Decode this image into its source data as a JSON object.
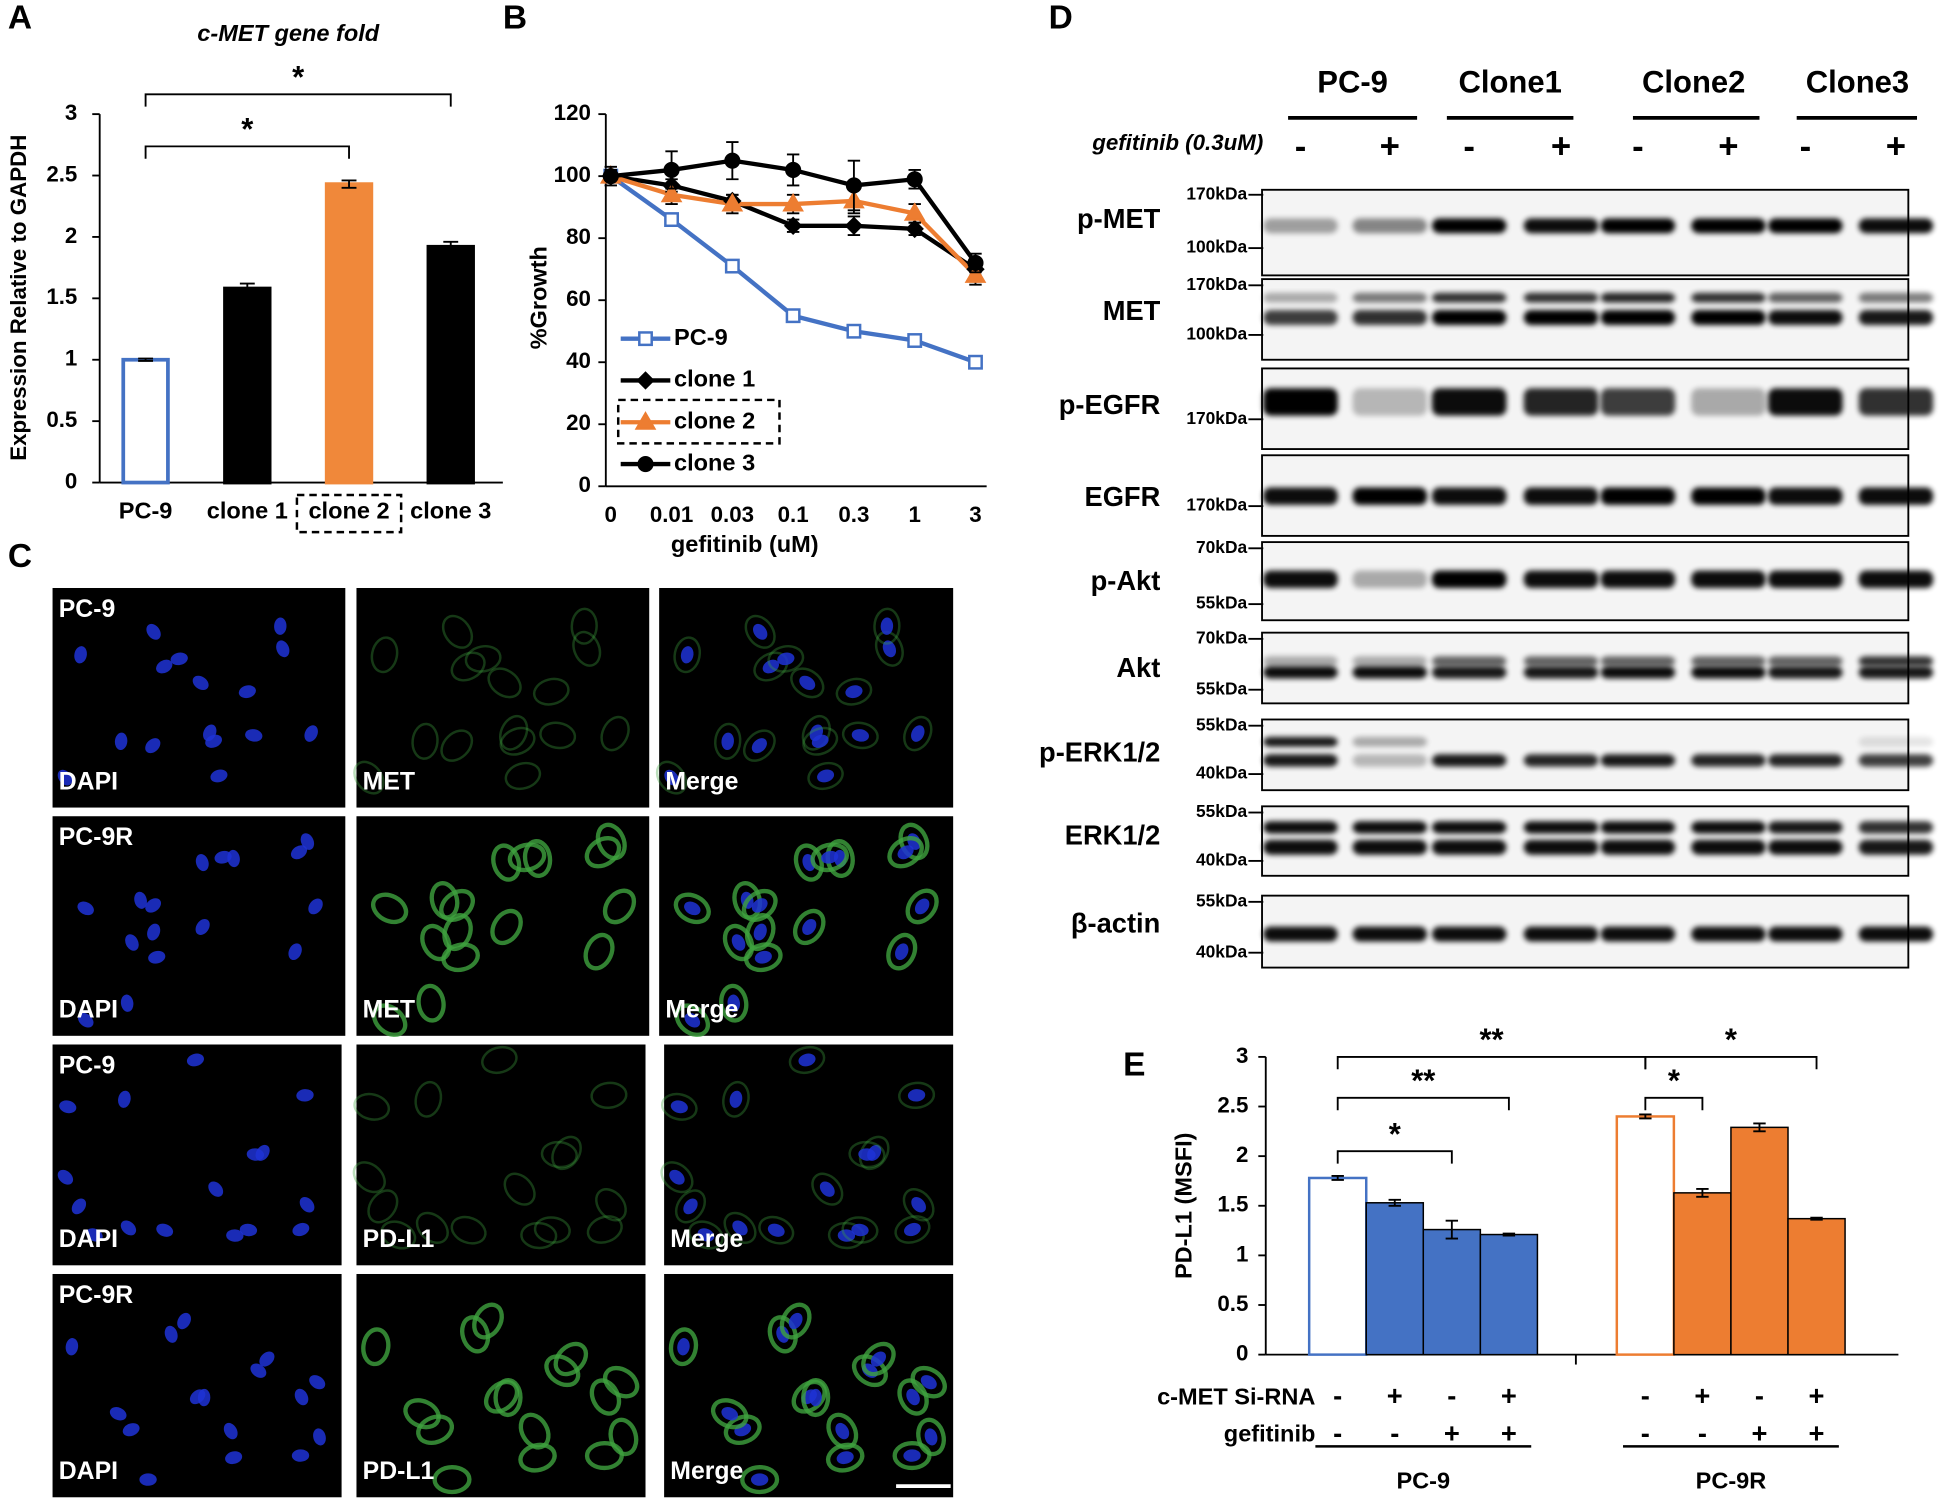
{
  "chart_data": [
    {
      "type": "bar",
      "panel_label": "A",
      "title": "c-MET gene fold",
      "ylabel": "Expression Relative to GAPDH",
      "categories": [
        "PC-9",
        "clone 1",
        "clone 2",
        "clone 3"
      ],
      "values": [
        1.0,
        1.58,
        2.43,
        1.92
      ],
      "errors": [
        0.01,
        0.04,
        0.03,
        0.04
      ],
      "colors": [
        "#ffffff",
        "#000000",
        "#f0883a",
        "#000000"
      ],
      "edge_colors": [
        "#4472c4",
        "#000000",
        "#f0883a",
        "#000000"
      ],
      "ylim": [
        0,
        3
      ],
      "yticks": [
        0,
        0.5,
        1,
        1.5,
        2,
        2.5,
        3
      ],
      "boxed_category": "clone 2",
      "annotations": [
        {
          "text": "*",
          "between": [
            "PC-9",
            "clone 2"
          ]
        },
        {
          "text": "*",
          "between": [
            "PC-9",
            "clone 3"
          ]
        }
      ]
    },
    {
      "type": "line",
      "panel_label": "B",
      "xlabel": "gefitinib (uM)",
      "ylabel": "%Growth",
      "categories": [
        "0",
        "0.01",
        "0.03",
        "0.1",
        "0.3",
        "1",
        "3"
      ],
      "ylim": [
        0,
        120
      ],
      "yticks": [
        0,
        20,
        40,
        60,
        80,
        100,
        120
      ],
      "legend": "lower left",
      "boxed_series": "clone 2",
      "series": [
        {
          "name": "PC-9",
          "color": "#4472c4",
          "marker": "square",
          "values": [
            100,
            86,
            71,
            55,
            50,
            47,
            40
          ],
          "errors": [
            2,
            1,
            1,
            1,
            1,
            1,
            1
          ]
        },
        {
          "name": "clone 1",
          "color": "#000000",
          "marker": "diamond",
          "values": [
            100,
            97,
            92,
            84,
            84,
            83,
            70
          ],
          "errors": [
            2,
            2,
            2,
            2,
            3,
            2,
            2
          ]
        },
        {
          "name": "clone 2",
          "color": "#ed7d31",
          "marker": "triangle",
          "values": [
            100,
            94,
            91,
            91,
            92,
            88,
            68
          ],
          "errors": [
            2,
            3,
            3,
            3,
            4,
            3,
            3
          ]
        },
        {
          "name": "clone 3",
          "color": "#000000",
          "marker": "circle",
          "values": [
            100,
            102,
            105,
            102,
            97,
            99,
            72
          ],
          "errors": [
            3,
            6,
            6,
            5,
            8,
            3,
            3
          ]
        }
      ]
    },
    {
      "type": "grouped_bar",
      "panel_label": "E",
      "ylabel": "PD-L1 (MSFI)",
      "ylim": [
        0,
        3
      ],
      "yticks": [
        0,
        0.5,
        1,
        1.5,
        2,
        2.5,
        3
      ],
      "open_first_bar": true,
      "groups": [
        {
          "name": "PC-9",
          "color": "#4472c4",
          "values": [
            1.78,
            1.53,
            1.26,
            1.21
          ],
          "errors": [
            0.02,
            0.03,
            0.09,
            0.01
          ]
        },
        {
          "name": "PC-9R",
          "color": "#ed7d31",
          "values": [
            2.4,
            1.63,
            2.29,
            1.37
          ],
          "errors": [
            0.02,
            0.04,
            0.04,
            0.01
          ]
        }
      ],
      "conditions": [
        {
          "label": "c-MET Si-RNA",
          "signs": [
            "-",
            "+",
            "-",
            "+"
          ]
        },
        {
          "label": "gefitinib",
          "signs": [
            "-",
            "-",
            "+",
            "+"
          ]
        }
      ],
      "annotations": [
        {
          "text": "*",
          "from": [
            0,
            0
          ],
          "to": [
            0,
            2
          ]
        },
        {
          "text": "**",
          "from": [
            0,
            0
          ],
          "to": [
            0,
            3
          ]
        },
        {
          "text": "**",
          "from": [
            0,
            0
          ],
          "to": [
            1,
            0
          ]
        },
        {
          "text": "*",
          "from": [
            1,
            0
          ],
          "to": [
            1,
            1
          ]
        },
        {
          "text": "*",
          "from": [
            1,
            0
          ],
          "to": [
            1,
            3
          ]
        }
      ]
    }
  ],
  "panel_c": {
    "panel_label": "C",
    "rows": [
      {
        "sample": "PC-9",
        "stains": [
          "DAPI",
          "MET",
          "Merge"
        ]
      },
      {
        "sample": "PC-9R",
        "stains": [
          "DAPI",
          "MET",
          "Merge"
        ]
      },
      {
        "sample": "PC-9",
        "stains": [
          "DAPI",
          "PD-L1",
          "Merge"
        ]
      },
      {
        "sample": "PC-9R",
        "stains": [
          "DAPI",
          "PD-L1",
          "Merge"
        ]
      }
    ]
  },
  "panel_d": {
    "panel_label": "D",
    "groups": [
      "PC-9",
      "Clone1",
      "Clone2",
      "Clone3"
    ],
    "treatment": "gefitinib (0.3uM)",
    "lanes": [
      "-",
      "+",
      "-",
      "+",
      "-",
      "+",
      "-",
      "+"
    ],
    "rows": [
      {
        "label": "p-MET",
        "markers": [
          "170kDa",
          "100kDa"
        ]
      },
      {
        "label": "MET",
        "markers": [
          "170kDa",
          "100kDa"
        ]
      },
      {
        "label": "p-EGFR",
        "markers": [
          "170kDa"
        ]
      },
      {
        "label": "EGFR",
        "markers": [
          "170kDa"
        ]
      },
      {
        "label": "p-Akt",
        "markers": [
          "70kDa",
          "55kDa"
        ]
      },
      {
        "label": "Akt",
        "markers": [
          "70kDa",
          "55kDa"
        ]
      },
      {
        "label": "p-ERK1/2",
        "markers": [
          "55kDa",
          "40kDa"
        ]
      },
      {
        "label": "ERK1/2",
        "markers": [
          "55kDa",
          "40kDa"
        ]
      },
      {
        "label": "β-actin",
        "markers": [
          "55kDa",
          "40kDa"
        ]
      }
    ]
  }
}
